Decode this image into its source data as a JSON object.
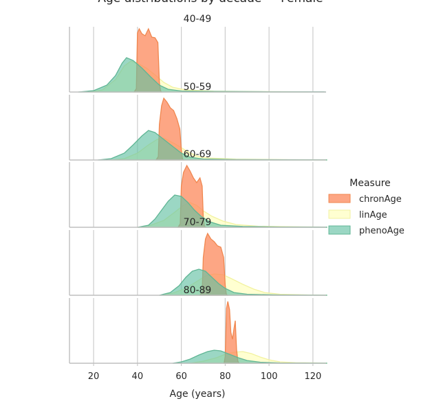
{
  "chart_data": {
    "type": "area",
    "title": "Age distributions by decade — Female",
    "xlabel": "Age (years)",
    "ylabel": "",
    "xlim": [
      9,
      126
    ],
    "xticks": [
      20,
      40,
      60,
      80,
      100,
      120
    ],
    "grid": "vertical",
    "legend": {
      "title": "Measure",
      "placement": "right",
      "entries": [
        "chronAge",
        "linAge",
        "phenoAge"
      ]
    },
    "colors": {
      "chronAge": "#fc8d62",
      "linAge": "#ffffbf",
      "phenoAge": "#66c2a5",
      "chronAge_edge": "#f0874f",
      "linAge_edge": "#f2f2a0",
      "phenoAge_edge": "#5fb594",
      "grid": "#cccccc",
      "spine": "#bfbfbf"
    },
    "panels": [
      {
        "title": "40-49",
        "series": [
          {
            "name": "chronAge",
            "points": [
              [
                38.5,
                0
              ],
              [
                39.5,
                0.05
              ],
              [
                40,
                0.86
              ],
              [
                40.8,
                0.92
              ],
              [
                42,
                0.85
              ],
              [
                43.5,
                0.82
              ],
              [
                45,
                0.92
              ],
              [
                46.5,
                0.8
              ],
              [
                48,
                0.79
              ],
              [
                49.3,
                0.72
              ],
              [
                50,
                0.14
              ],
              [
                50.5,
                0.02
              ],
              [
                51,
                0
              ]
            ]
          },
          {
            "name": "linAge",
            "points": [
              [
                18,
                0
              ],
              [
                24,
                0.03
              ],
              [
                30,
                0.18
              ],
              [
                34,
                0.38
              ],
              [
                37,
                0.45
              ],
              [
                40,
                0.42
              ],
              [
                44,
                0.35
              ],
              [
                48,
                0.25
              ],
              [
                52,
                0.14
              ],
              [
                56,
                0.07
              ],
              [
                62,
                0.03
              ],
              [
                75,
                0.012
              ],
              [
                95,
                0.006
              ],
              [
                116,
                0.004
              ],
              [
                118,
                0
              ]
            ]
          },
          {
            "name": "phenoAge",
            "points": [
              [
                13,
                0
              ],
              [
                20,
                0.02
              ],
              [
                26,
                0.1
              ],
              [
                30,
                0.24
              ],
              [
                33,
                0.42
              ],
              [
                35,
                0.5
              ],
              [
                38,
                0.46
              ],
              [
                42,
                0.35
              ],
              [
                46,
                0.22
              ],
              [
                50,
                0.1
              ],
              [
                54,
                0.04
              ],
              [
                60,
                0.015
              ],
              [
                75,
                0.008
              ],
              [
                100,
                0.004
              ],
              [
                125,
                0.003
              ],
              [
                126,
                0
              ]
            ]
          }
        ]
      },
      {
        "title": "50-59",
        "series": [
          {
            "name": "chronAge",
            "points": [
              [
                48.5,
                0
              ],
              [
                49.5,
                0.05
              ],
              [
                50,
                0.52
              ],
              [
                51,
                0.79
              ],
              [
                52,
                0.9
              ],
              [
                53.5,
                0.84
              ],
              [
                55,
                0.76
              ],
              [
                56.5,
                0.72
              ],
              [
                58,
                0.6
              ],
              [
                59.3,
                0.45
              ],
              [
                60,
                0.15
              ],
              [
                60.5,
                0.02
              ],
              [
                61,
                0
              ]
            ]
          },
          {
            "name": "linAge",
            "points": [
              [
                28,
                0
              ],
              [
                34,
                0.02
              ],
              [
                40,
                0.1
              ],
              [
                45,
                0.22
              ],
              [
                49,
                0.3
              ],
              [
                52,
                0.32
              ],
              [
                55,
                0.27
              ],
              [
                59,
                0.2
              ],
              [
                63,
                0.12
              ],
              [
                67,
                0.06
              ],
              [
                72,
                0.03
              ],
              [
                85,
                0.012
              ],
              [
                110,
                0.005
              ],
              [
                126,
                0.003
              ],
              [
                126.5,
                0
              ]
            ]
          },
          {
            "name": "phenoAge",
            "points": [
              [
                22,
                0
              ],
              [
                28,
                0.02
              ],
              [
                34,
                0.1
              ],
              [
                38,
                0.22
              ],
              [
                42,
                0.35
              ],
              [
                45,
                0.43
              ],
              [
                48,
                0.4
              ],
              [
                52,
                0.3
              ],
              [
                56,
                0.2
              ],
              [
                60,
                0.1
              ],
              [
                64,
                0.04
              ],
              [
                70,
                0.015
              ],
              [
                85,
                0.006
              ],
              [
                110,
                0.003
              ],
              [
                126,
                0.002
              ],
              [
                126.5,
                0
              ]
            ]
          }
        ]
      },
      {
        "title": "60-69",
        "series": [
          {
            "name": "chronAge",
            "points": [
              [
                58.5,
                0
              ],
              [
                59.5,
                0.05
              ],
              [
                60,
                0.6
              ],
              [
                61,
                0.8
              ],
              [
                62.5,
                0.9
              ],
              [
                64,
                0.82
              ],
              [
                65.5,
                0.72
              ],
              [
                67,
                0.65
              ],
              [
                68.5,
                0.72
              ],
              [
                69.5,
                0.6
              ],
              [
                70,
                0.15
              ],
              [
                70.5,
                0.02
              ],
              [
                71,
                0
              ]
            ]
          },
          {
            "name": "linAge",
            "points": [
              [
                40,
                0
              ],
              [
                46,
                0.03
              ],
              [
                52,
                0.1
              ],
              [
                57,
                0.22
              ],
              [
                61,
                0.32
              ],
              [
                64,
                0.36
              ],
              [
                67,
                0.32
              ],
              [
                70,
                0.24
              ],
              [
                74,
                0.16
              ],
              [
                79,
                0.09
              ],
              [
                85,
                0.04
              ],
              [
                95,
                0.015
              ],
              [
                115,
                0.006
              ],
              [
                126,
                0.003
              ],
              [
                126.5,
                0
              ]
            ]
          },
          {
            "name": "phenoAge",
            "points": [
              [
                40,
                0
              ],
              [
                45,
                0.03
              ],
              [
                48,
                0.12
              ],
              [
                51,
                0.25
              ],
              [
                54,
                0.38
              ],
              [
                57,
                0.47
              ],
              [
                60,
                0.45
              ],
              [
                63,
                0.36
              ],
              [
                66,
                0.25
              ],
              [
                69,
                0.16
              ],
              [
                73,
                0.08
              ],
              [
                78,
                0.03
              ],
              [
                88,
                0.012
              ],
              [
                105,
                0.005
              ],
              [
                126,
                0.003
              ],
              [
                126.5,
                0
              ]
            ]
          }
        ]
      },
      {
        "title": "70-79",
        "series": [
          {
            "name": "chronAge",
            "points": [
              [
                68.5,
                0
              ],
              [
                69.5,
                0.05
              ],
              [
                70,
                0.55
              ],
              [
                71,
                0.82
              ],
              [
                72,
                0.9
              ],
              [
                73.5,
                0.82
              ],
              [
                75,
                0.78
              ],
              [
                76.5,
                0.72
              ],
              [
                78,
                0.7
              ],
              [
                79.3,
                0.55
              ],
              [
                80,
                0.15
              ],
              [
                80.5,
                0.02
              ],
              [
                81,
                0
              ]
            ]
          },
          {
            "name": "linAge",
            "points": [
              [
                50,
                0
              ],
              [
                56,
                0.03
              ],
              [
                62,
                0.1
              ],
              [
                67,
                0.2
              ],
              [
                71,
                0.28
              ],
              [
                75,
                0.31
              ],
              [
                79,
                0.3
              ],
              [
                83,
                0.24
              ],
              [
                88,
                0.16
              ],
              [
                93,
                0.09
              ],
              [
                98,
                0.04
              ],
              [
                105,
                0.015
              ],
              [
                118,
                0.005
              ],
              [
                126,
                0.003
              ],
              [
                126.5,
                0
              ]
            ]
          },
          {
            "name": "phenoAge",
            "points": [
              [
                50,
                0
              ],
              [
                55,
                0.04
              ],
              [
                59,
                0.14
              ],
              [
                62,
                0.26
              ],
              [
                65,
                0.35
              ],
              [
                68,
                0.38
              ],
              [
                71,
                0.35
              ],
              [
                74,
                0.26
              ],
              [
                77,
                0.17
              ],
              [
                80,
                0.1
              ],
              [
                84,
                0.04
              ],
              [
                90,
                0.015
              ],
              [
                105,
                0.005
              ],
              [
                126,
                0.002
              ],
              [
                126.5,
                0
              ]
            ]
          }
        ]
      },
      {
        "title": "80-89",
        "series": [
          {
            "name": "chronAge",
            "points": [
              [
                79.5,
                0
              ],
              [
                80,
                0.1
              ],
              [
                80.6,
                0.8
              ],
              [
                81.2,
                0.9
              ],
              [
                82,
                0.78
              ],
              [
                82.6,
                0.45
              ],
              [
                83.3,
                0.35
              ],
              [
                84,
                0.5
              ],
              [
                84.6,
                0.62
              ],
              [
                85.2,
                0.2
              ],
              [
                85.8,
                0.03
              ],
              [
                86.3,
                0
              ]
            ]
          },
          {
            "name": "linAge",
            "points": [
              [
                64,
                0
              ],
              [
                70,
                0.03
              ],
              [
                76,
                0.08
              ],
              [
                80,
                0.13
              ],
              [
                84,
                0.16
              ],
              [
                88,
                0.17
              ],
              [
                92,
                0.14
              ],
              [
                96,
                0.09
              ],
              [
                100,
                0.05
              ],
              [
                105,
                0.02
              ],
              [
                112,
                0.008
              ],
              [
                126,
                0.003
              ],
              [
                126.5,
                0
              ]
            ]
          },
          {
            "name": "phenoAge",
            "points": [
              [
                56,
                0
              ],
              [
                60,
                0.02
              ],
              [
                64,
                0.06
              ],
              [
                68,
                0.12
              ],
              [
                72,
                0.17
              ],
              [
                75,
                0.19
              ],
              [
                78,
                0.18
              ],
              [
                82,
                0.13
              ],
              [
                86,
                0.08
              ],
              [
                90,
                0.04
              ],
              [
                96,
                0.015
              ],
              [
                105,
                0.005
              ],
              [
                126,
                0.002
              ],
              [
                126.5,
                0
              ]
            ]
          }
        ]
      }
    ]
  }
}
